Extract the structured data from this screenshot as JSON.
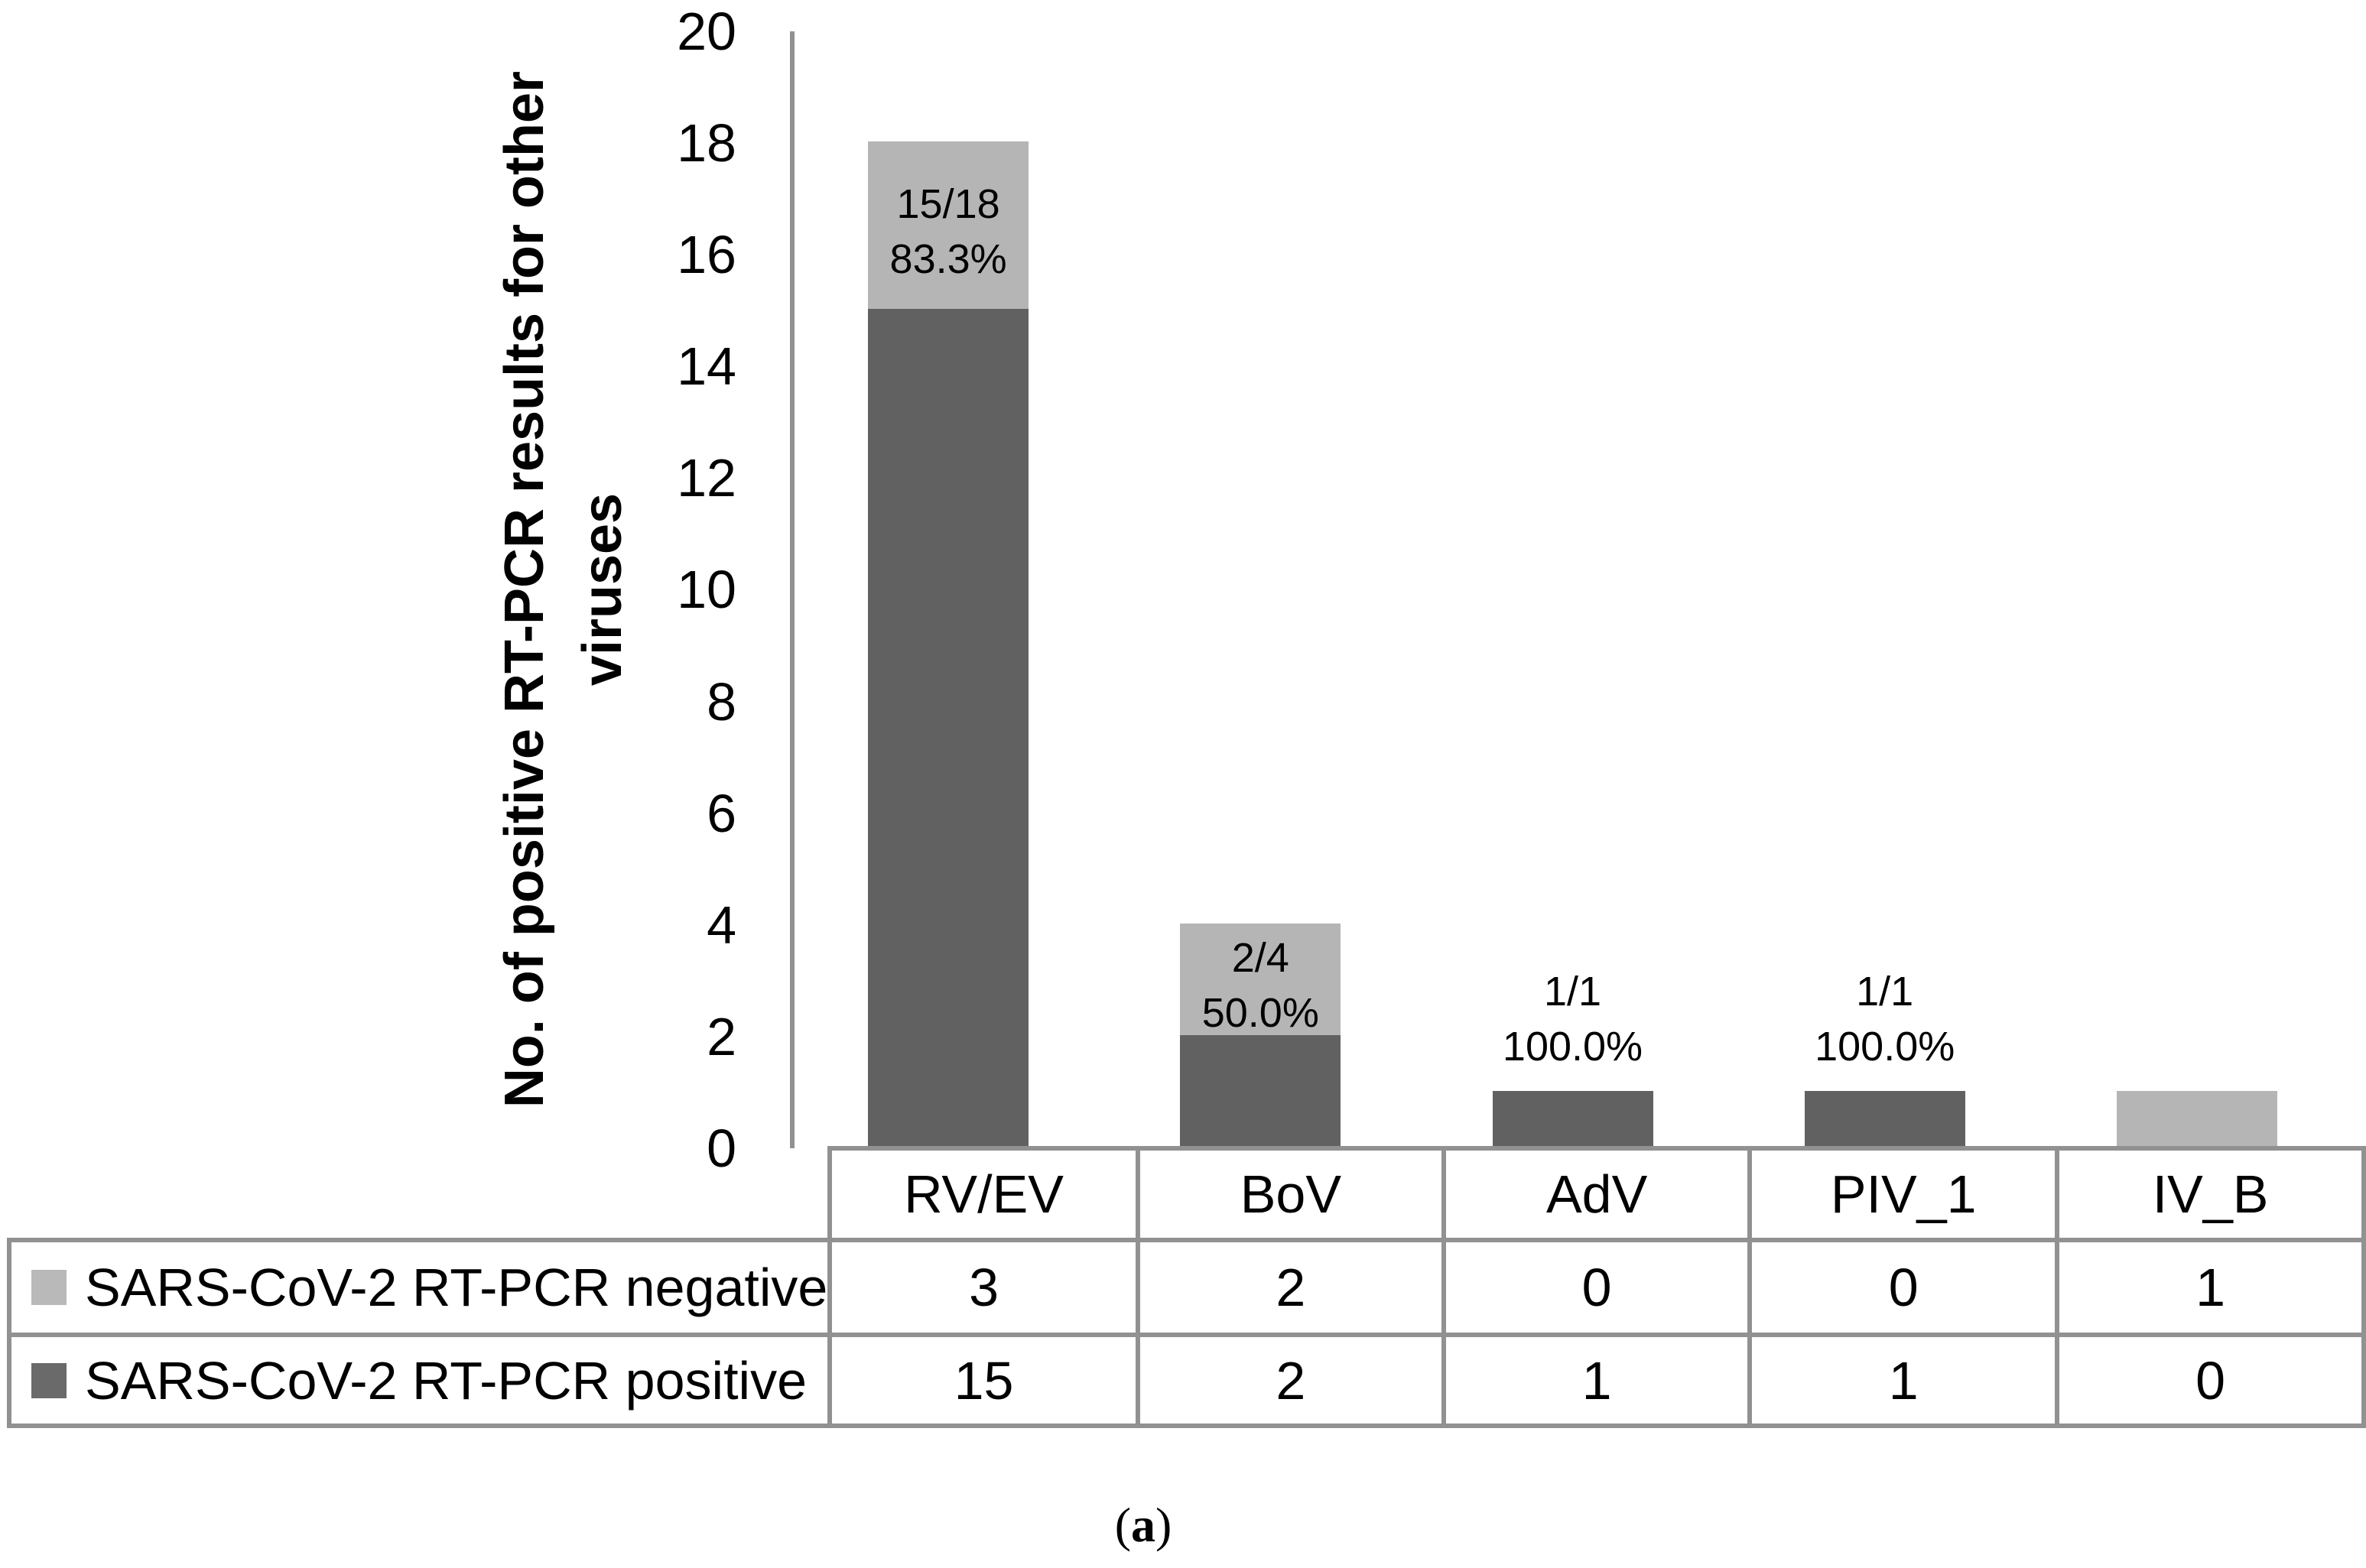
{
  "chart_data": {
    "type": "bar",
    "stacked": true,
    "title": "",
    "ylabel_line1": "No. of positive RT-PCR results for other",
    "ylabel_line2": "viruses",
    "ylim": [
      0,
      20
    ],
    "ytick_step": 2,
    "yticks": [
      "0",
      "2",
      "4",
      "6",
      "8",
      "10",
      "12",
      "14",
      "16",
      "18",
      "20"
    ],
    "grid": false,
    "legend_position": "left-column-of-attached-table",
    "categories": [
      "RV/EV",
      "BoV",
      "AdV",
      "PIV_1",
      "IV_B"
    ],
    "series": [
      {
        "name": "SARS-CoV-2 RT-PCR negative",
        "role": "negative",
        "color": "#b5b5b5",
        "values": [
          3,
          2,
          0,
          0,
          1
        ]
      },
      {
        "name": "SARS-CoV-2 RT-PCR positive",
        "role": "positive",
        "color": "#616161",
        "values": [
          15,
          2,
          1,
          1,
          0
        ]
      }
    ],
    "bar_labels": [
      {
        "line1": "15/18",
        "line2": "83.3%",
        "placement": "inside"
      },
      {
        "line1": "2/4",
        "line2": "50.0%",
        "placement": "inside"
      },
      {
        "line1": "1/1",
        "line2": "100.0%",
        "placement": "above"
      },
      {
        "line1": "1/1",
        "line2": "100.0%",
        "placement": "above"
      },
      null
    ]
  },
  "table": {
    "header": [
      "RV/EV",
      "BoV",
      "AdV",
      "PIV_1",
      "IV_B"
    ],
    "rows": [
      {
        "label": "SARS-CoV-2 RT-PCR negative",
        "swatch_color": "#b9b9b9",
        "values": [
          "3",
          "2",
          "0",
          "0",
          "1"
        ]
      },
      {
        "label": "SARS-CoV-2 RT-PCR positive",
        "swatch_color": "#6a6a6a",
        "values": [
          "15",
          "2",
          "1",
          "1",
          "0"
        ]
      }
    ]
  },
  "caption": {
    "open": "(",
    "label": "a",
    "close": ")"
  },
  "colors": {
    "bar_negative": "#b5b5b5",
    "bar_positive": "#616161",
    "border_gray": "#919191",
    "text": "#000000",
    "background": "#ffffff"
  }
}
